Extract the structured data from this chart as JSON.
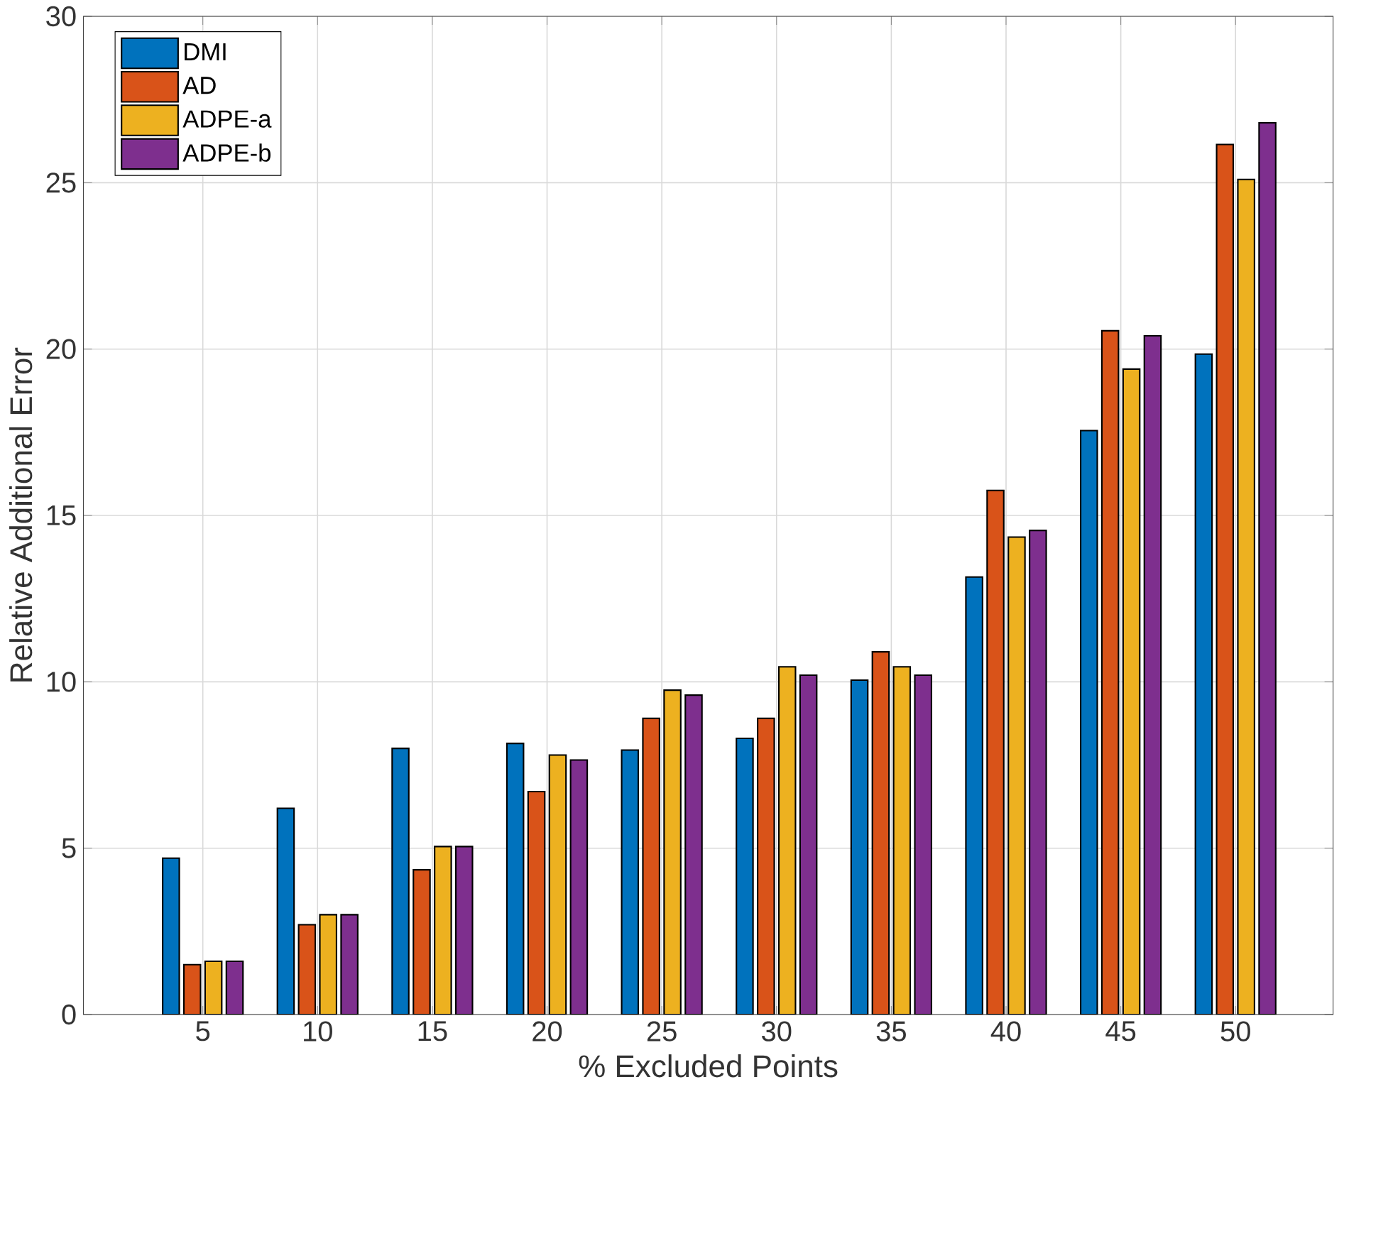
{
  "chart_data": {
    "type": "bar",
    "xlabel": "% Excluded Points",
    "ylabel": "Relative Additional Error",
    "categories": [
      "5",
      "10",
      "15",
      "20",
      "25",
      "30",
      "35",
      "40",
      "45",
      "50"
    ],
    "series": [
      {
        "name": "DMI",
        "color": "#0072bd",
        "values": [
          4.7,
          6.2,
          8.0,
          8.15,
          7.95,
          8.3,
          10.05,
          13.15,
          17.55,
          19.85
        ]
      },
      {
        "name": "AD",
        "color": "#d95319",
        "values": [
          1.5,
          2.7,
          4.35,
          6.7,
          8.9,
          8.9,
          10.9,
          15.75,
          20.55,
          26.15
        ]
      },
      {
        "name": "ADPE-a",
        "color": "#edb120",
        "values": [
          1.6,
          3.0,
          5.05,
          7.8,
          9.75,
          10.45,
          10.45,
          14.35,
          19.4,
          25.1
        ]
      },
      {
        "name": "ADPE-b",
        "color": "#7e2f8e",
        "values": [
          1.6,
          3.0,
          5.05,
          7.65,
          9.6,
          10.2,
          10.2,
          14.55,
          20.4,
          26.8
        ]
      }
    ],
    "ylim": [
      0,
      30
    ],
    "yticks": [
      0,
      5,
      10,
      15,
      20,
      25,
      30
    ],
    "grid": true,
    "legend": "top left"
  }
}
